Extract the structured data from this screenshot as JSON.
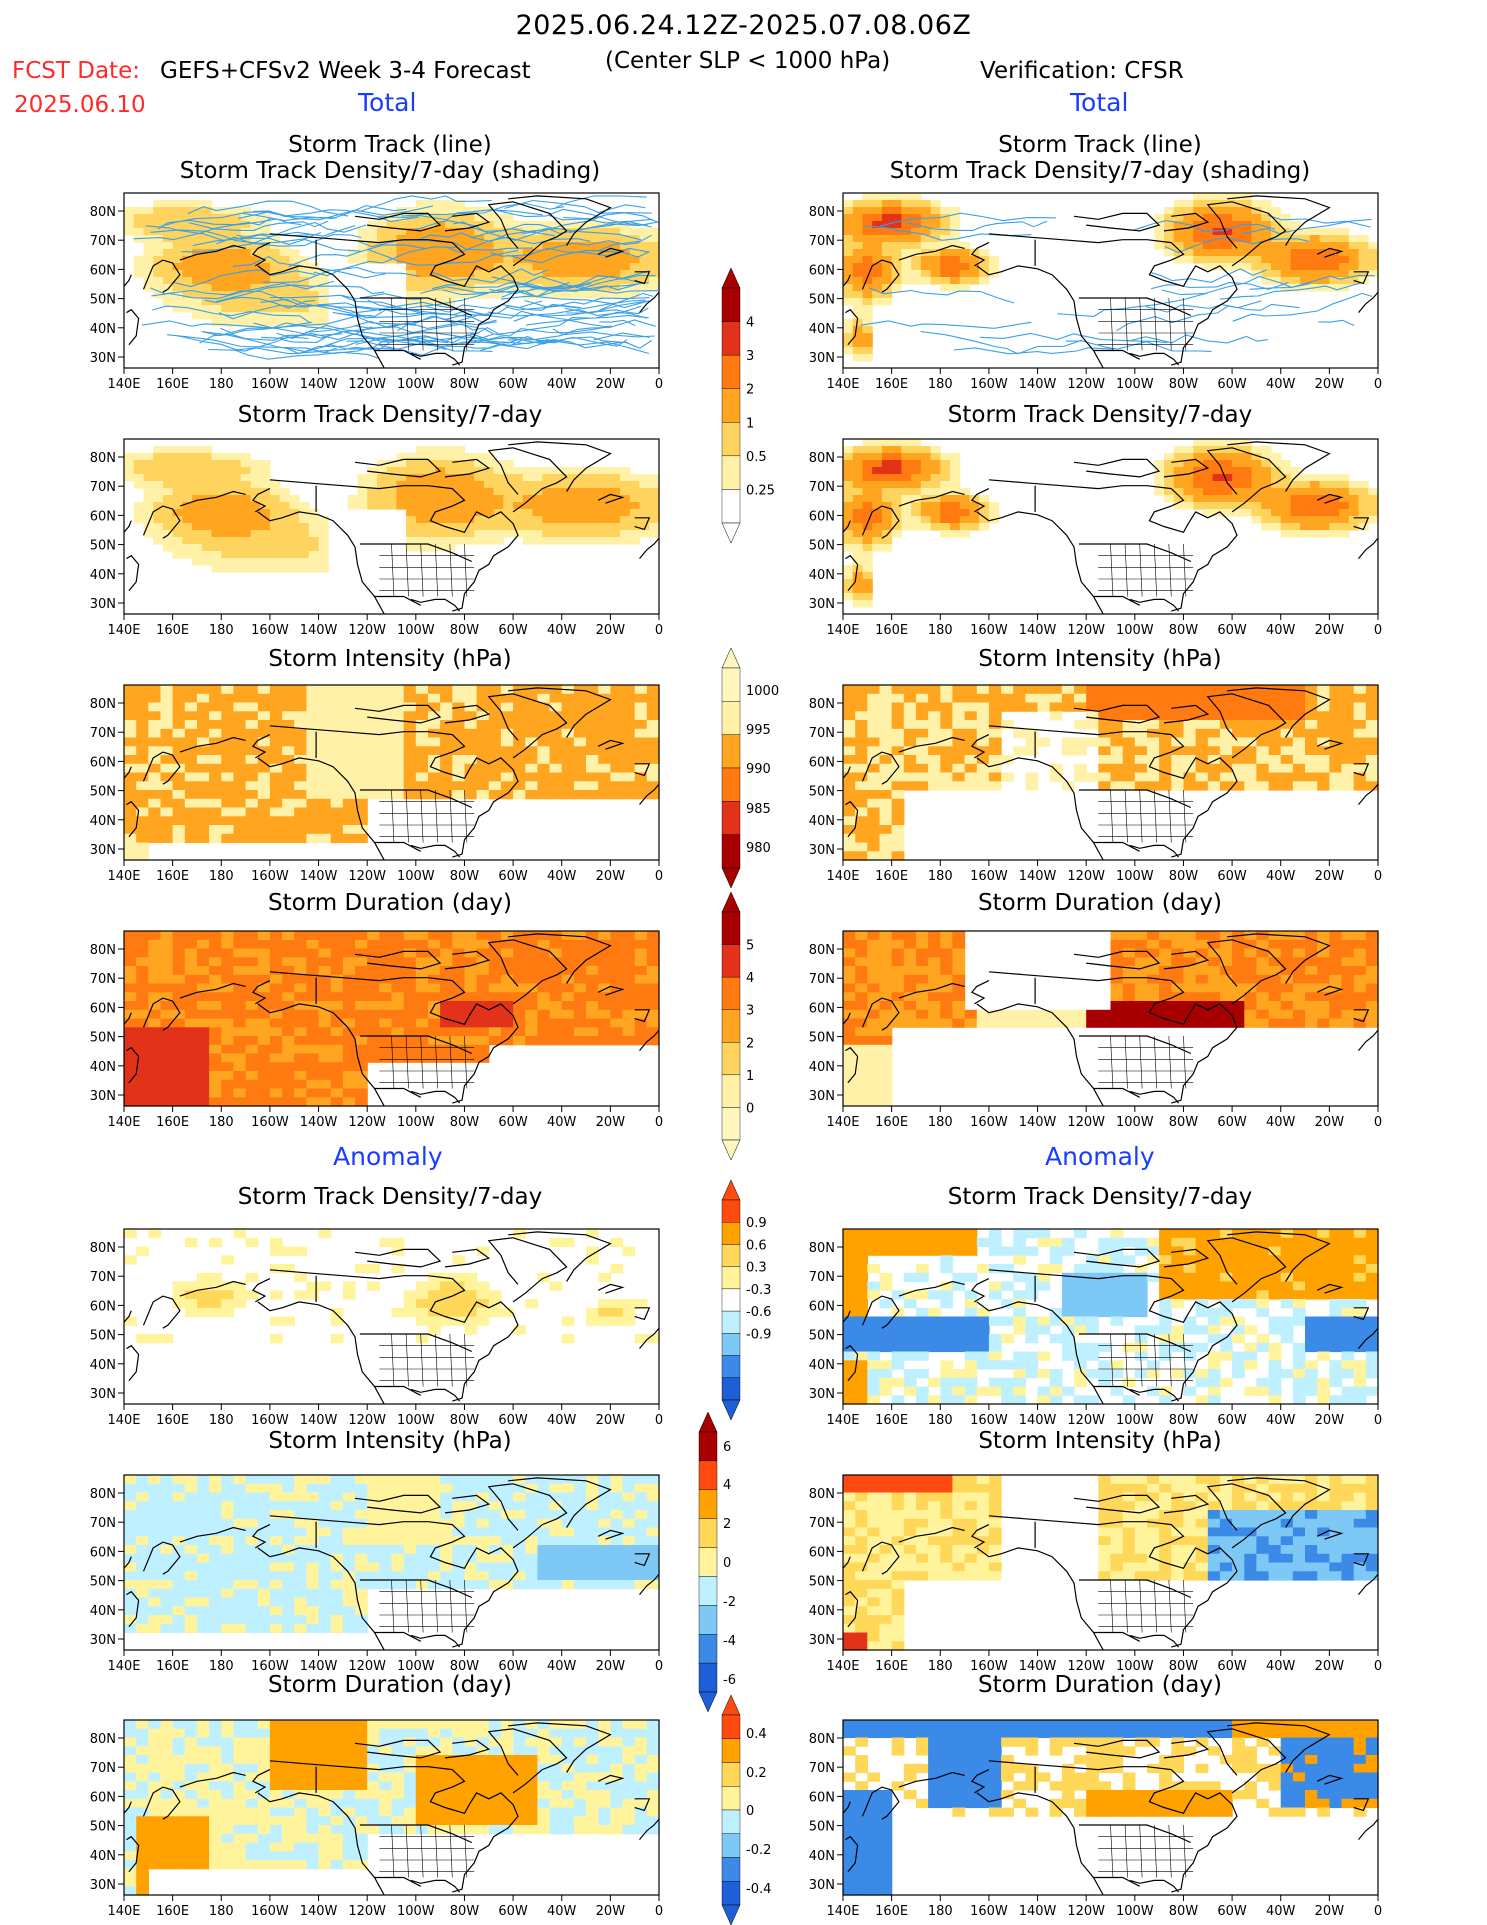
{
  "header": {
    "period": "2025.06.24.12Z-2025.07.08.06Z",
    "fcst_label": "FCST Date:",
    "fcst_date": "2025.06.10",
    "model": "GEFS+CFSv2 Week 3-4 Forecast",
    "criterion": "(Center SLP < 1000 hPa)",
    "verification": "Verification: CFSR",
    "section_total": "Total",
    "section_anomaly": "Anomaly"
  },
  "colors": {
    "anom_pos": [
      "#fff49c",
      "#ffd85a",
      "#ffa200",
      "#ff4a10"
    ],
    "anom_neg": [
      "#bff0ff",
      "#7ec8f6",
      "#3b8ae8",
      "#1e5fd8"
    ],
    "total": [
      "#ffffff",
      "#fff2a8",
      "#ffd45e",
      "#ffa520",
      "#ff7a10",
      "#e3321a",
      "#a80000"
    ],
    "track_line": "#3aa0e8",
    "land_line": "#000000"
  },
  "axes": {
    "lat_ticks": [
      "80N",
      "70N",
      "60N",
      "50N",
      "40N",
      "30N"
    ],
    "lon_ticks": [
      "140E",
      "160E",
      "180",
      "160W",
      "140W",
      "120W",
      "100W",
      "80W",
      "60W",
      "40W",
      "20W",
      "0"
    ]
  },
  "panels": {
    "left_total_track_title1": "Storm Track (line)",
    "left_total_track_title2": "Storm Track Density/7-day (shading)",
    "right_total_track_title1": "Storm Track (line)",
    "right_total_track_title2": "Storm Track Density/7-day (shading)",
    "density": "Storm Track Density/7-day",
    "intensity": "Storm Intensity (hPa)",
    "duration": "Storm Duration (day)"
  },
  "chart_data": [
    {
      "type": "heatmap",
      "panel": "forecast-total-storm-track",
      "colorbar": "density-total",
      "levels": [
        0.25,
        0.5,
        1,
        2,
        3,
        4
      ],
      "lines": "storm-tracks"
    },
    {
      "type": "heatmap",
      "panel": "verification-total-storm-track",
      "colorbar": "density-total",
      "levels": [
        0.25,
        0.5,
        1,
        2,
        3,
        4
      ],
      "lines": "storm-tracks"
    },
    {
      "type": "heatmap",
      "panel": "forecast-total-density",
      "colorbar": "density-total",
      "levels": [
        0.25,
        0.5,
        1,
        2,
        3,
        4
      ]
    },
    {
      "type": "heatmap",
      "panel": "verification-total-density",
      "colorbar": "density-total",
      "levels": [
        0.25,
        0.5,
        1,
        2,
        3,
        4
      ]
    },
    {
      "type": "heatmap",
      "panel": "forecast-total-intensity",
      "colorbar": "intensity-total",
      "levels": [
        1000,
        995,
        990,
        985,
        980
      ]
    },
    {
      "type": "heatmap",
      "panel": "verification-total-intensity",
      "colorbar": "intensity-total",
      "levels": [
        1000,
        995,
        990,
        985,
        980
      ]
    },
    {
      "type": "heatmap",
      "panel": "forecast-total-duration",
      "colorbar": "duration-total",
      "levels": [
        0,
        1,
        2,
        3,
        4,
        5
      ]
    },
    {
      "type": "heatmap",
      "panel": "verification-total-duration",
      "colorbar": "duration-total",
      "levels": [
        0,
        1,
        2,
        3,
        4,
        5
      ]
    },
    {
      "type": "heatmap",
      "panel": "forecast-anomaly-density",
      "colorbar": "density-anomaly",
      "levels": [
        -0.9,
        -0.6,
        -0.3,
        0.3,
        0.6,
        0.9
      ]
    },
    {
      "type": "heatmap",
      "panel": "verification-anomaly-density",
      "colorbar": "density-anomaly",
      "levels": [
        -0.9,
        -0.6,
        -0.3,
        0.3,
        0.6,
        0.9
      ]
    },
    {
      "type": "heatmap",
      "panel": "forecast-anomaly-intensity",
      "colorbar": "intensity-anomaly",
      "levels": [
        -6,
        -4,
        -2,
        0,
        2,
        4,
        6
      ]
    },
    {
      "type": "heatmap",
      "panel": "verification-anomaly-intensity",
      "colorbar": "intensity-anomaly",
      "levels": [
        -6,
        -4,
        -2,
        0,
        2,
        4,
        6
      ]
    },
    {
      "type": "heatmap",
      "panel": "forecast-anomaly-duration",
      "colorbar": "duration-anomaly",
      "levels": [
        -0.4,
        -0.2,
        0,
        0.2,
        0.4
      ]
    },
    {
      "type": "heatmap",
      "panel": "verification-anomaly-duration",
      "colorbar": "duration-anomaly",
      "levels": [
        -0.4,
        -0.2,
        0,
        0.2,
        0.4
      ]
    }
  ],
  "colorbars": {
    "density_total": [
      "4",
      "3",
      "2",
      "1",
      "0.5",
      "0.25"
    ],
    "intensity_total": [
      "1000",
      "995",
      "990",
      "985",
      "980"
    ],
    "duration_total": [
      "5",
      "4",
      "3",
      "2",
      "1",
      "0"
    ],
    "density_anomaly": [
      "0.9",
      "0.6",
      "0.3",
      "-0.3",
      "-0.6",
      "-0.9"
    ],
    "intensity_anomaly": [
      "6",
      "4",
      "2",
      "0",
      "-2",
      "-4",
      "-6"
    ],
    "duration_anomaly": [
      "0.4",
      "0.2",
      "0",
      "-0.2",
      "-0.4"
    ]
  }
}
